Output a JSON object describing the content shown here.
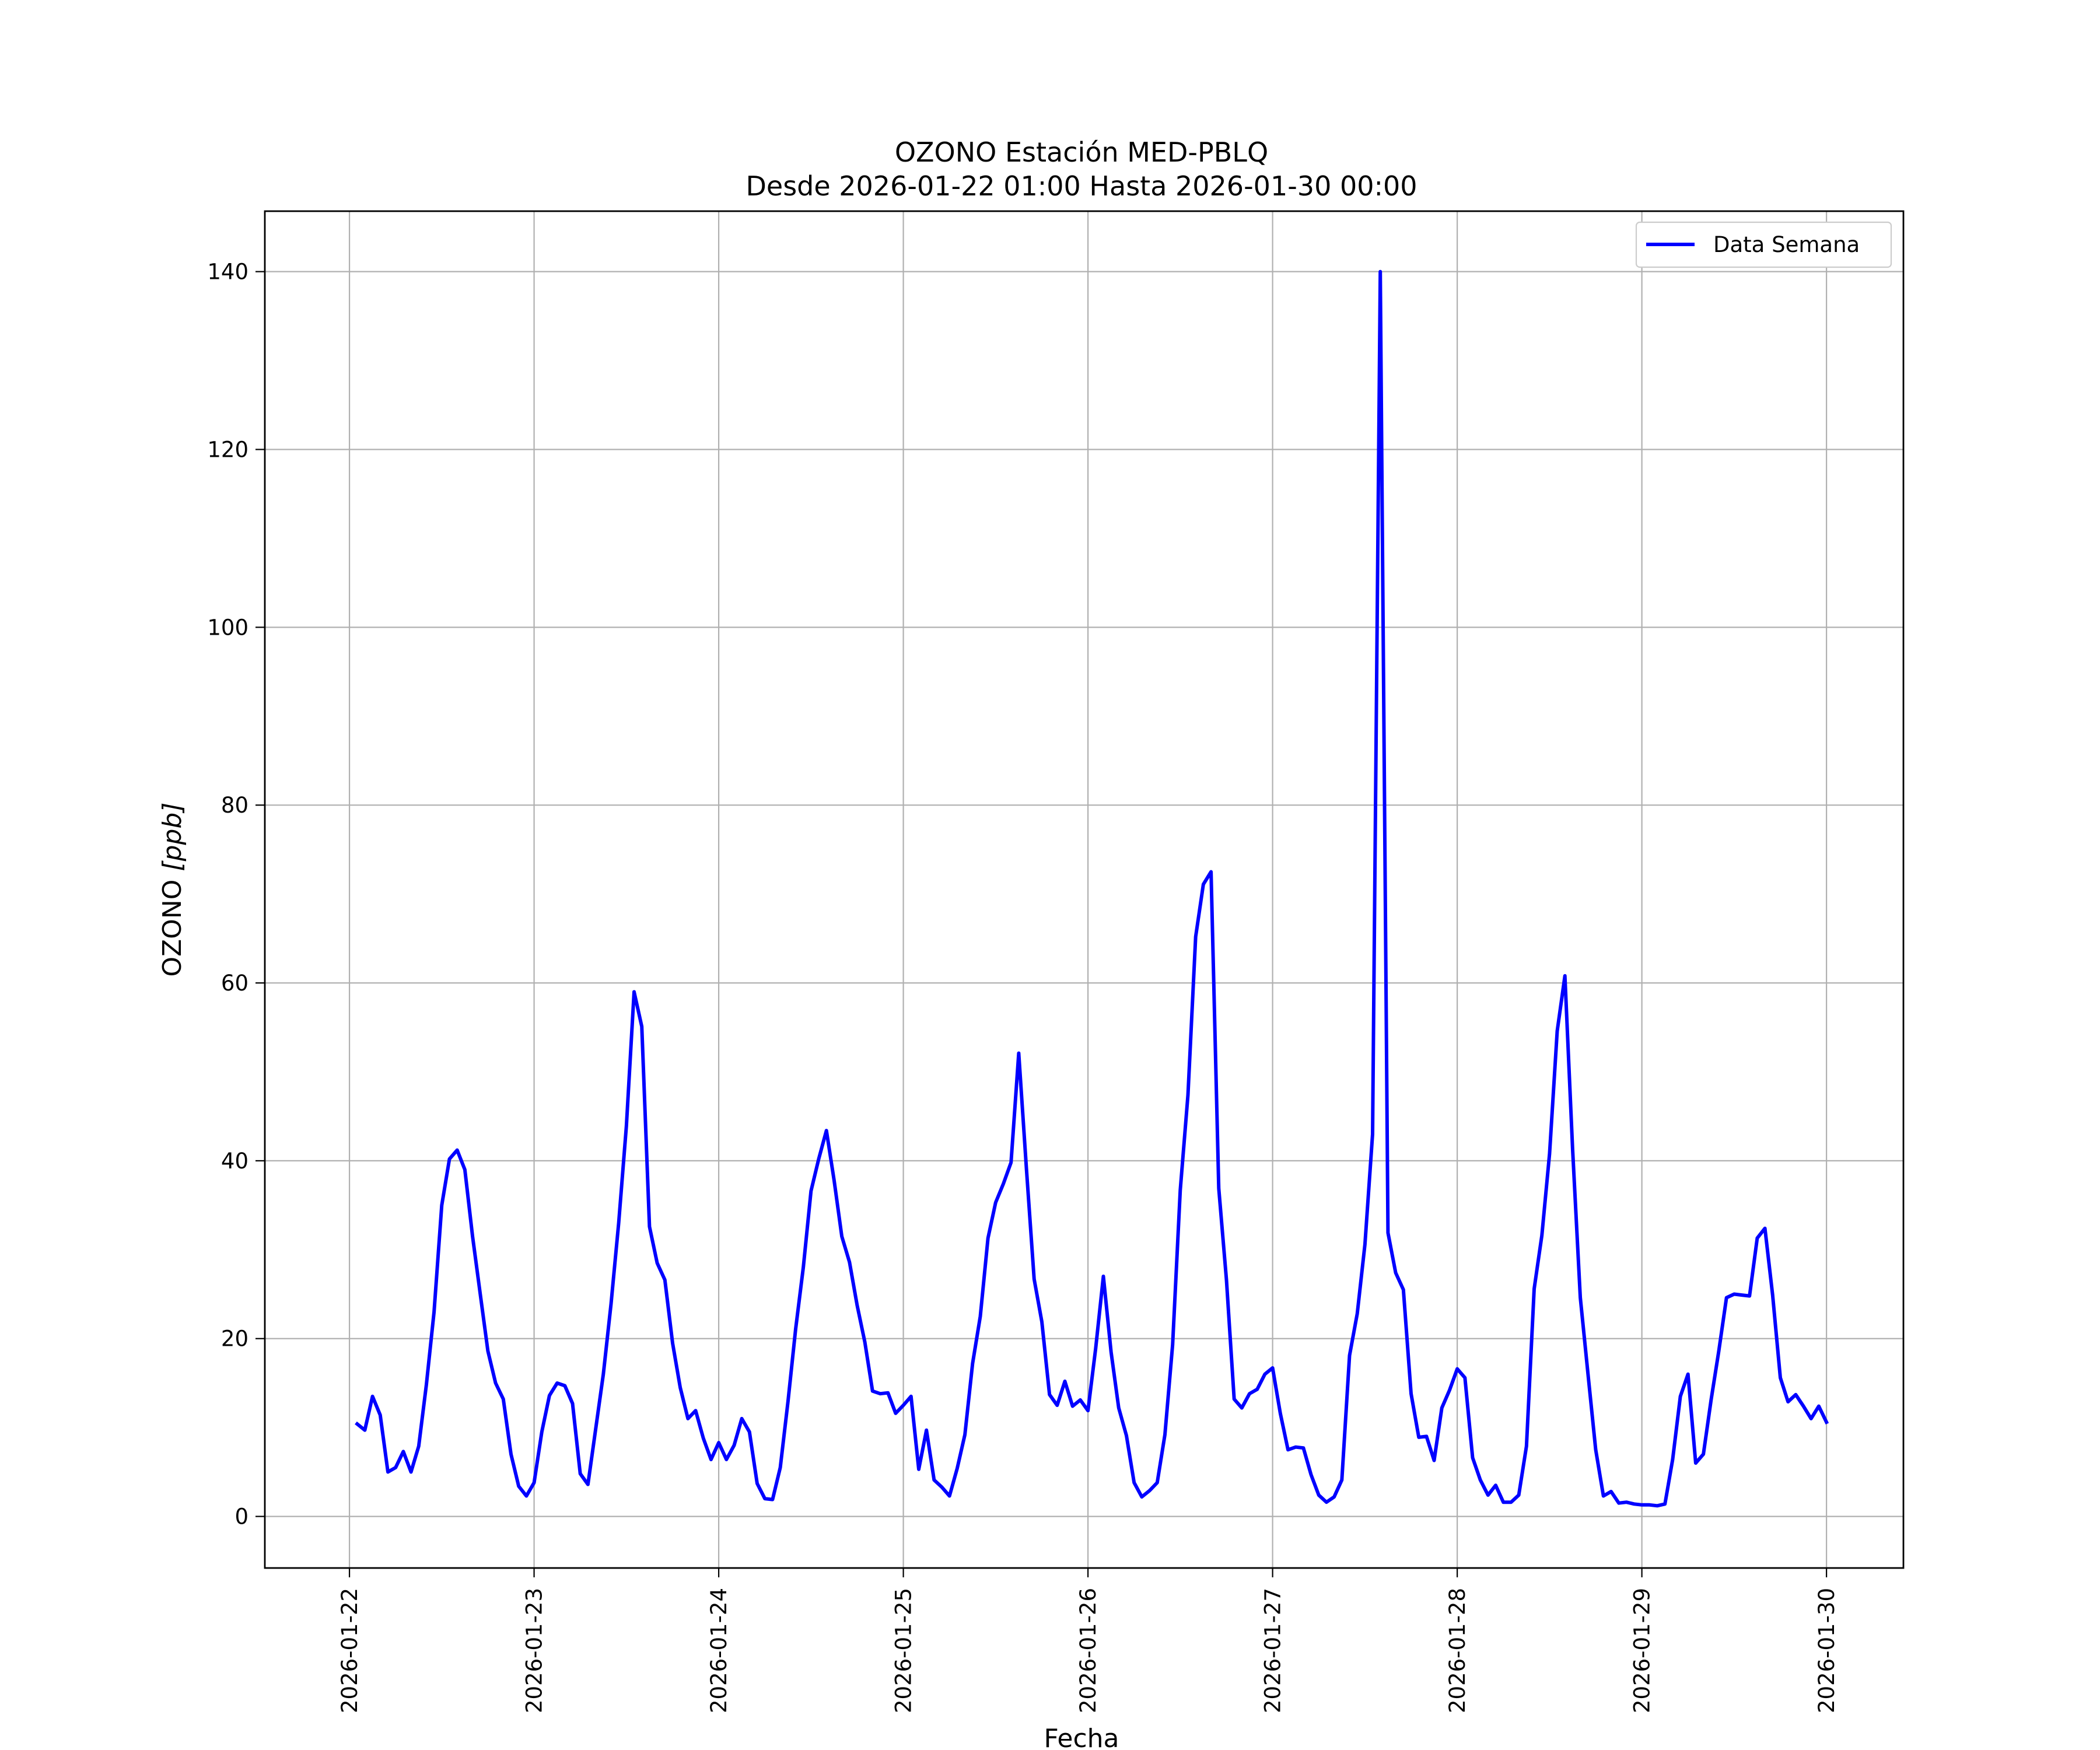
{
  "chart_data": {
    "type": "line",
    "title": "OZONO Estación MED-PBLQ",
    "subtitle": "Desde 2026-01-22 01:00 Hasta 2026-01-30 00:00",
    "xlabel": "Fecha",
    "ylabel": "OZONO [ppb]",
    "ylabel_main": "OZONO ",
    "ylabel_unit": "[ppb]",
    "x_start": "2026-01-22 01:00",
    "x_end": "2026-01-30 00:00",
    "x_step": "1 hour",
    "xlim": [
      "2026-01-21 13:00",
      "2026-01-30 10:00"
    ],
    "ylim": [
      -5.8,
      146.8
    ],
    "x_ticks": [
      "2026-01-22",
      "2026-01-23",
      "2026-01-24",
      "2026-01-25",
      "2026-01-26",
      "2026-01-27",
      "2026-01-28",
      "2026-01-29",
      "2026-01-30"
    ],
    "y_ticks": [
      0,
      20,
      40,
      60,
      80,
      100,
      120,
      140
    ],
    "grid": true,
    "legend": {
      "placement": "top-right"
    },
    "series": [
      {
        "name": "Data Semana",
        "color": "#0000ff",
        "values": [
          10.4,
          9.7,
          13.5,
          11.4,
          5.0,
          5.5,
          7.3,
          5.0,
          7.9,
          14.8,
          23.0,
          35.0,
          40.2,
          41.2,
          39.0,
          31.5,
          25.0,
          18.6,
          15.0,
          13.2,
          7.0,
          3.4,
          2.3,
          3.8,
          9.5,
          13.6,
          15.0,
          14.7,
          12.7,
          4.8,
          3.6,
          9.8,
          16.0,
          23.9,
          33.0,
          43.9,
          59.0,
          55.1,
          32.6,
          28.5,
          26.6,
          19.5,
          14.5,
          11.0,
          11.9,
          8.8,
          6.4,
          8.3,
          6.4,
          8.0,
          11.0,
          9.5,
          3.7,
          2.0,
          1.9,
          5.5,
          12.9,
          21.1,
          28.0,
          36.6,
          40.2,
          43.4,
          37.8,
          31.5,
          28.6,
          23.7,
          19.6,
          14.1,
          13.8,
          13.9,
          11.6,
          12.5,
          13.5,
          5.3,
          9.7,
          4.1,
          3.3,
          2.3,
          5.4,
          9.2,
          17.2,
          22.5,
          31.3,
          35.3,
          37.4,
          39.8,
          52.1,
          39.1,
          26.7,
          21.9,
          13.7,
          12.5,
          15.2,
          12.4,
          13.1,
          11.9,
          18.9,
          27.0,
          18.5,
          12.2,
          9.1,
          3.8,
          2.2,
          2.9,
          3.8,
          9.2,
          19.3,
          36.7,
          47.4,
          65.2,
          71.1,
          72.5,
          36.9,
          26.6,
          13.2,
          12.2,
          13.8,
          14.3,
          16.0,
          16.7,
          11.6,
          7.5,
          7.8,
          7.7,
          4.7,
          2.4,
          1.6,
          2.2,
          4.1,
          18.1,
          22.8,
          30.6,
          43.0,
          140.0,
          31.9,
          27.4,
          25.5,
          13.8,
          8.9,
          9.0,
          6.3,
          12.2,
          14.2,
          16.6,
          15.6,
          6.6,
          4.1,
          2.4,
          3.5,
          1.6,
          1.6,
          2.4,
          7.9,
          25.6,
          31.6,
          40.8,
          54.6,
          60.8,
          41.3,
          24.6,
          16.0,
          7.5,
          2.3,
          2.8,
          1.5,
          1.6,
          1.4,
          1.3,
          1.3,
          1.2,
          1.4,
          6.4,
          13.5,
          16.0,
          6.0,
          7.0,
          13.1,
          18.6,
          24.6,
          25.0,
          24.9,
          24.8,
          31.3,
          32.4,
          24.9,
          15.6,
          12.9,
          13.7,
          12.4,
          11.0,
          12.4,
          10.6
        ]
      }
    ]
  }
}
